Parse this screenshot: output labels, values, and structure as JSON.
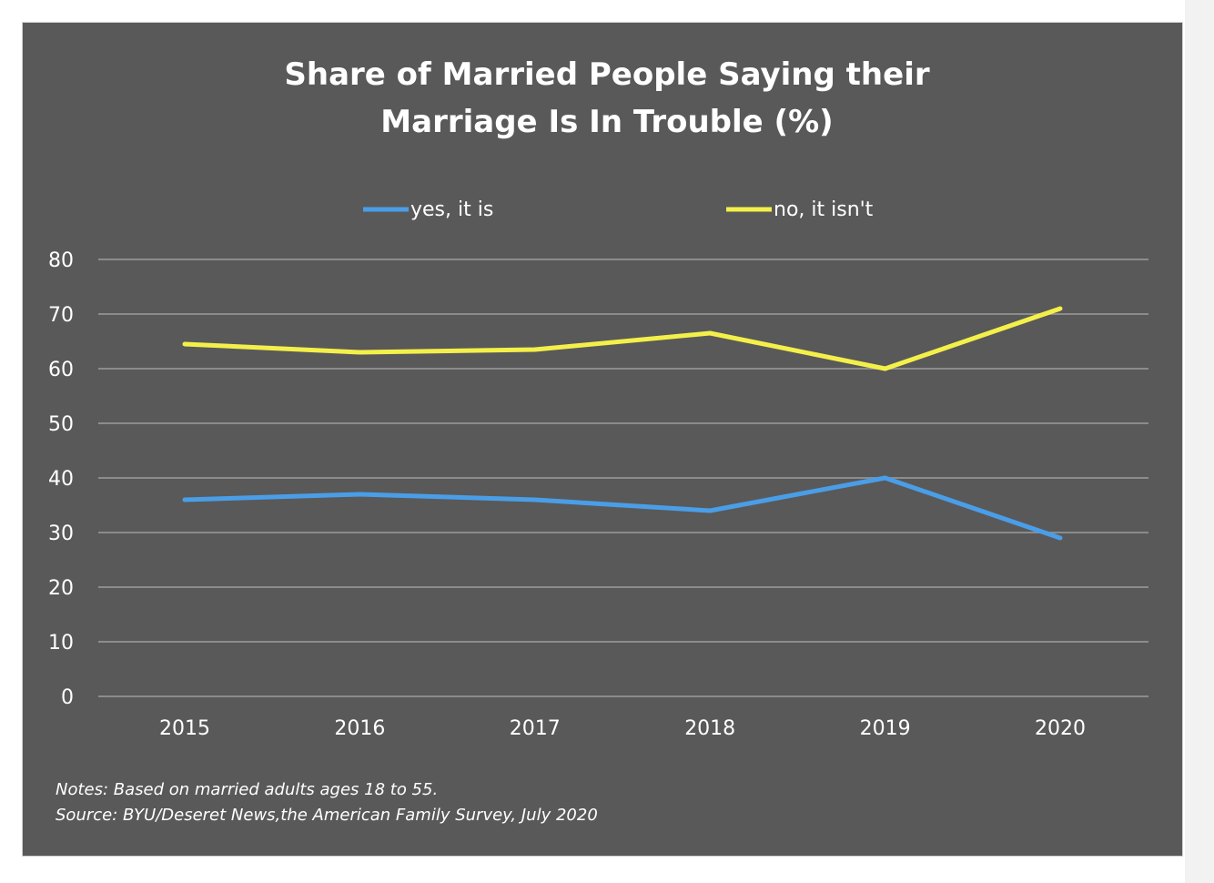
{
  "chart_data": {
    "type": "line",
    "title_lines": [
      "Share of Married People Saying their",
      "Marriage Is In Trouble (%)"
    ],
    "categories": [
      "2015",
      "2016",
      "2017",
      "2018",
      "2019",
      "2020"
    ],
    "ylim": [
      0,
      80
    ],
    "yticks": [
      "0",
      "10",
      "20",
      "30",
      "40",
      "50",
      "60",
      "70",
      "80"
    ],
    "grid": true,
    "legend_position": "top",
    "series": [
      {
        "name": "yes, it is",
        "color": "#4a9ee8",
        "values": [
          36,
          37,
          36,
          34,
          40,
          29
        ]
      },
      {
        "name": "no, it isn't",
        "color": "#f4f04a",
        "values": [
          64.5,
          63,
          63.5,
          66.5,
          60,
          71
        ]
      }
    ]
  },
  "notes": [
    "Notes:  Based on married adults ages 18 to 55.",
    "Source: BYU/Deseret News,the American Family Survey, July 2020"
  ],
  "colors": {
    "panel_background": "#595959",
    "gridline": "#8c8c8c",
    "text": "#ffffff"
  }
}
